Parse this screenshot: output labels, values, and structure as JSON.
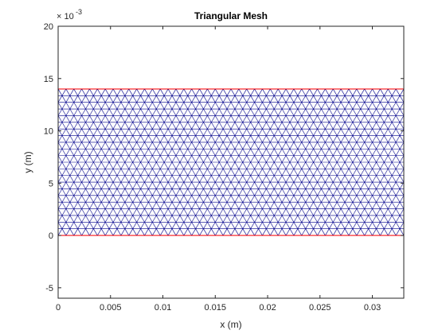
{
  "chart_data": {
    "type": "mesh",
    "title": "Triangular Mesh",
    "xlabel": "x (m)",
    "ylabel": "y (m)",
    "y_exponent_base": "× 10",
    "y_exponent_power": "-3",
    "xlim": [
      0,
      0.033
    ],
    "ylim": [
      -6,
      20
    ],
    "y_scale_note": "y tick values shown ×10^-3",
    "x_ticks": [
      {
        "value": 0,
        "label": "0"
      },
      {
        "value": 0.005,
        "label": "0.005"
      },
      {
        "value": 0.01,
        "label": "0.01"
      },
      {
        "value": 0.015,
        "label": "0.015"
      },
      {
        "value": 0.02,
        "label": "0.02"
      },
      {
        "value": 0.025,
        "label": "0.025"
      },
      {
        "value": 0.03,
        "label": "0.03"
      }
    ],
    "y_ticks": [
      {
        "value": -5,
        "label": "-5"
      },
      {
        "value": 0,
        "label": "0"
      },
      {
        "value": 5,
        "label": "5"
      },
      {
        "value": 10,
        "label": "10"
      },
      {
        "value": 15,
        "label": "15"
      },
      {
        "value": 20,
        "label": "20"
      }
    ],
    "domain_rect": {
      "x_min": 0,
      "x_max": 0.033,
      "y_min": 0,
      "y_max": 14
    },
    "mesh_spacing": 0.00075,
    "mesh_color": "#00008b",
    "boundary_color": "#ff0000",
    "grid": false
  }
}
